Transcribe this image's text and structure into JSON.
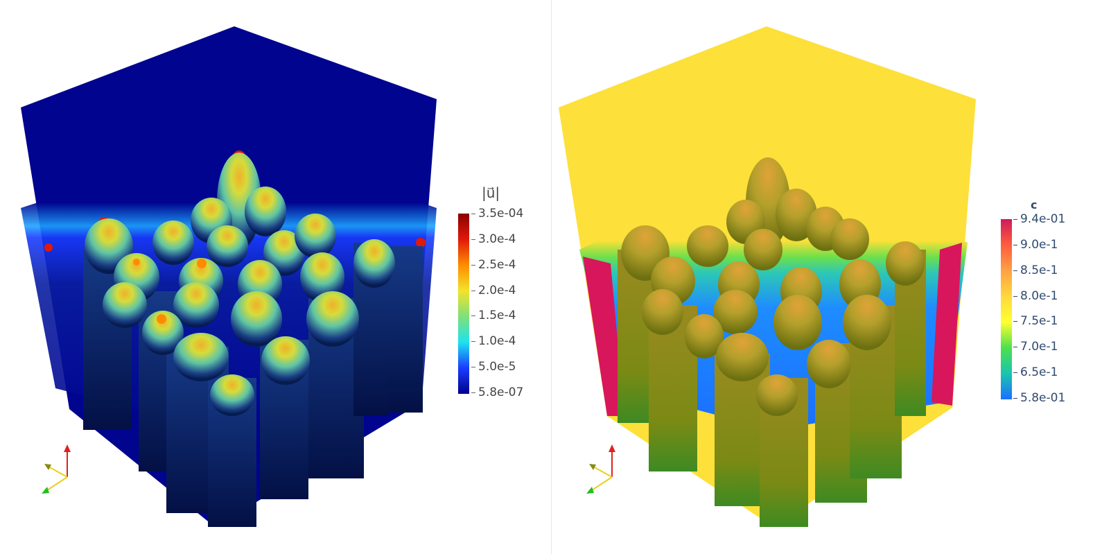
{
  "left_view": {
    "colorbar": {
      "title": "|u⃗|",
      "labels": [
        "3.5e-04",
        "3.0e-4",
        "2.5e-4",
        "2.0e-4",
        "1.5e-4",
        "1.0e-4",
        "5.0e-5",
        "5.8e-07"
      ],
      "colormap": "jet",
      "colors": [
        "#8b0000",
        "#e0190a",
        "#ff8c00",
        "#f3e32a",
        "#7fe07a",
        "#1ee3f0",
        "#1a3cff",
        "#00008b"
      ]
    },
    "field_color": "#00048f",
    "axes_icon": [
      "x-arrow-green",
      "y-arrow-olive",
      "z-arrow-red"
    ]
  },
  "right_view": {
    "colorbar": {
      "title": "c",
      "labels": [
        "9.4e-01",
        "9.0e-1",
        "8.5e-1",
        "8.0e-1",
        "7.5e-1",
        "7.0e-1",
        "6.5e-1",
        "5.8e-01"
      ],
      "colormap": "rainbow-desaturated",
      "colors": [
        "#cf1a5a",
        "#ff5c3e",
        "#ffa144",
        "#ffd83c",
        "#ffff30",
        "#4de04c",
        "#19c5b0",
        "#1a6fff"
      ]
    },
    "field_color": "#fde039",
    "side_color": "#d8165c",
    "surface_color": "#9a9a1e",
    "axes_icon": [
      "x-arrow-green",
      "y-arrow-olive",
      "z-arrow-red"
    ]
  }
}
